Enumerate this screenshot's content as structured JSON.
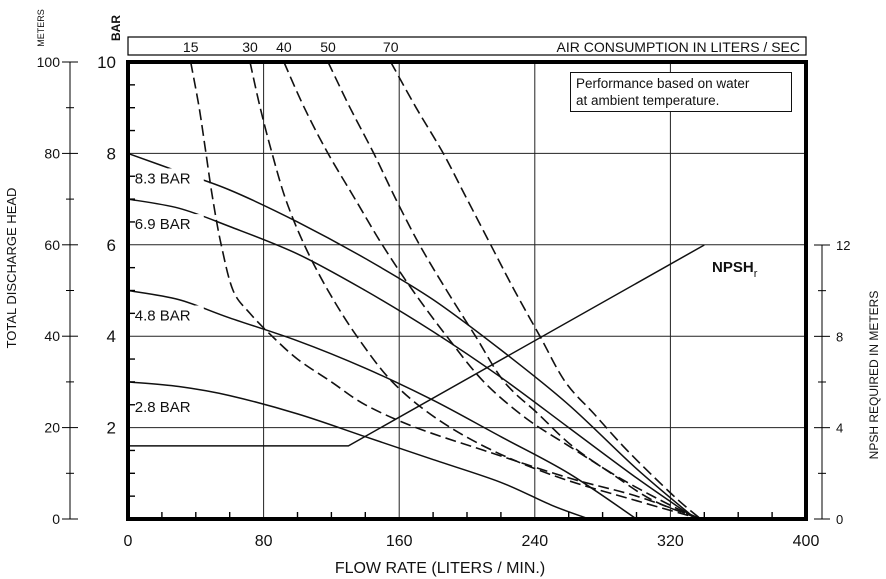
{
  "chart_data": {
    "type": "line",
    "title": "",
    "xlabel": "FLOW RATE (LITERS / MIN.)",
    "ylabel_left_meters": "TOTAL DISCHARGE HEAD",
    "left_units": "METERS",
    "bar_units": "BAR",
    "ylabel_right": "NPSH REQUIRED IN METERS",
    "top_axis_label": "AIR CONSUMPTION IN LITERS / SEC",
    "note": [
      "Performance based on water",
      "at ambient temperature."
    ],
    "xlim": [
      0,
      400
    ],
    "ylim_bar": [
      0,
      10
    ],
    "ylim_meters": [
      0,
      100
    ],
    "ylim_npsh": [
      0,
      12
    ],
    "x_ticks": [
      "0",
      "80",
      "160",
      "240",
      "320",
      "400"
    ],
    "bar_ticks": [
      "2",
      "4",
      "6",
      "8",
      "10"
    ],
    "meter_ticks": [
      "0",
      "20",
      "40",
      "60",
      "80",
      "100"
    ],
    "npsh_ticks": [
      "0",
      "4",
      "8",
      "12"
    ],
    "grid": true,
    "pressure_series": [
      {
        "name": "8.3 BAR",
        "x": [
          0,
          30,
          60,
          100,
          140,
          180,
          220,
          260,
          300,
          335
        ],
        "y": [
          8.0,
          7.6,
          7.2,
          6.5,
          5.7,
          4.8,
          3.7,
          2.5,
          1.1,
          0.0
        ]
      },
      {
        "name": "6.9 BAR",
        "x": [
          0,
          30,
          60,
          100,
          140,
          180,
          220,
          260,
          300,
          335
        ],
        "y": [
          7.0,
          6.8,
          6.4,
          5.8,
          5.0,
          4.1,
          3.1,
          2.0,
          0.9,
          0.0
        ]
      },
      {
        "name": "4.8 BAR",
        "x": [
          0,
          30,
          60,
          100,
          140,
          180,
          220,
          260,
          300
        ],
        "y": [
          5.0,
          4.8,
          4.4,
          3.9,
          3.3,
          2.6,
          1.8,
          1.0,
          0.0
        ]
      },
      {
        "name": "2.8 BAR",
        "x": [
          0,
          30,
          60,
          100,
          140,
          180,
          220,
          250,
          272
        ],
        "y": [
          3.0,
          2.9,
          2.7,
          2.3,
          1.8,
          1.3,
          0.8,
          0.3,
          0.0
        ]
      }
    ],
    "air_series": [
      {
        "name": "15",
        "x": [
          37,
          42,
          46,
          50,
          55,
          62,
          72,
          85,
          100,
          120,
          140,
          170,
          210,
          260,
          300,
          338
        ],
        "y": [
          10.0,
          9.0,
          8.0,
          7.0,
          6.0,
          5.0,
          4.5,
          4.0,
          3.5,
          3.0,
          2.5,
          2.0,
          1.5,
          0.9,
          0.5,
          0.0
        ]
      },
      {
        "name": "30",
        "x": [
          72,
          78,
          85,
          93,
          104,
          118,
          135,
          156,
          182,
          215,
          255,
          300,
          338
        ],
        "y": [
          10.0,
          9.0,
          8.0,
          7.0,
          6.0,
          5.0,
          4.0,
          3.0,
          2.2,
          1.5,
          0.9,
          0.4,
          0.0
        ]
      },
      {
        "name": "40",
        "x": [
          92,
          104,
          118,
          134,
          150,
          168,
          188,
          210,
          235,
          260,
          290,
          320,
          338
        ],
        "y": [
          10.0,
          9.0,
          8.0,
          7.0,
          6.0,
          5.0,
          4.0,
          3.0,
          2.2,
          1.6,
          0.9,
          0.3,
          0.0
        ]
      },
      {
        "name": "50",
        "x": [
          118,
          131,
          145,
          158,
          172,
          188,
          205,
          222,
          242,
          262,
          285,
          310,
          338
        ],
        "y": [
          10.0,
          9.0,
          8.0,
          7.0,
          6.0,
          5.0,
          4.0,
          3.0,
          2.3,
          1.6,
          1.0,
          0.4,
          0.0
        ]
      },
      {
        "name": "70",
        "x": [
          155,
          170,
          186,
          200,
          214,
          228,
          243,
          258,
          275,
          292,
          308,
          325,
          338
        ],
        "y": [
          10.0,
          9.0,
          8.0,
          7.0,
          6.0,
          5.0,
          4.0,
          3.0,
          2.3,
          1.6,
          1.0,
          0.4,
          0.0
        ]
      }
    ],
    "npsh_series": {
      "name": "NPSH",
      "subscript": "r",
      "x": [
        0,
        130,
        340
      ],
      "y": [
        3.2,
        3.2,
        12.0
      ]
    }
  }
}
